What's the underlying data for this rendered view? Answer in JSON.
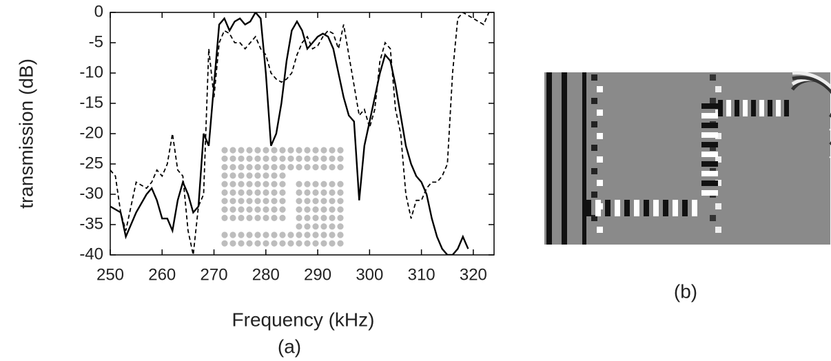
{
  "chart_data": {
    "type": "line",
    "xlabel": "Frequency (kHz)",
    "ylabel": "transmission (dB)",
    "xlim": [
      250,
      324
    ],
    "ylim": [
      -40,
      0
    ],
    "xticks": [
      250,
      260,
      270,
      280,
      290,
      300,
      310,
      320
    ],
    "yticks": [
      0,
      -5,
      -10,
      -15,
      -20,
      -25,
      -30,
      -35,
      -40
    ],
    "series": [
      {
        "color": "#000000",
        "line_style": "solid",
        "x": [
          250,
          252,
          253,
          255,
          257,
          258,
          259,
          260,
          261,
          262,
          263,
          264,
          265,
          266,
          267,
          268,
          269,
          270,
          271,
          272,
          273,
          274,
          275,
          276,
          277,
          278,
          279,
          280,
          281,
          282,
          283,
          284,
          285,
          286,
          287,
          288,
          289,
          290,
          291,
          292,
          293,
          294,
          295,
          296,
          297,
          298,
          299,
          300,
          301,
          302,
          303,
          304,
          305,
          306,
          307,
          308,
          309,
          310,
          311,
          312,
          313,
          314,
          315,
          316,
          317,
          318,
          319
        ],
        "values": [
          -32,
          -33,
          -37,
          -33,
          -30,
          -29,
          -31,
          -34,
          -34,
          -36,
          -31,
          -28,
          -30,
          -33,
          -32,
          -20,
          -22,
          -12,
          -2,
          -1,
          -3,
          -1.5,
          -1,
          -2,
          -1.5,
          0,
          -1,
          -10,
          -22,
          -20,
          -15,
          -8,
          -3,
          -1.5,
          -3,
          -6,
          -5,
          -4,
          -3.5,
          -4,
          -6,
          -10,
          -14,
          -17,
          -18,
          -31,
          -22,
          -18,
          -14,
          -10,
          -7,
          -8,
          -12,
          -17,
          -22,
          -25,
          -27,
          -28,
          -30,
          -34,
          -37,
          -39,
          -40,
          -40,
          -39,
          -37,
          -39
        ]
      },
      {
        "color": "#000000",
        "line_style": "dashed",
        "x": [
          250,
          251,
          252,
          253,
          255,
          257,
          258,
          259,
          260,
          261,
          262,
          263,
          264,
          265,
          266,
          267,
          268,
          269,
          270,
          271,
          272,
          273,
          274,
          275,
          276,
          277,
          278,
          279,
          280,
          281,
          282,
          283,
          284,
          285,
          286,
          287,
          288,
          289,
          290,
          291,
          292,
          293,
          294,
          295,
          296,
          297,
          298,
          299,
          300,
          301,
          302,
          303,
          304,
          305,
          306,
          307,
          308,
          309,
          310,
          311,
          312,
          313,
          314,
          315,
          316,
          317,
          318,
          320,
          322,
          323
        ],
        "values": [
          -26,
          -27,
          -33,
          -36,
          -28,
          -29,
          -28,
          -26,
          -27,
          -25,
          -20,
          -26,
          -27,
          -36,
          -40,
          -32,
          -30,
          -6,
          -14,
          -5,
          -3,
          -3.5,
          -5,
          -5,
          -6,
          -5,
          -4,
          -6,
          -7,
          -10,
          -11,
          -11.5,
          -11,
          -10,
          -7,
          -5,
          -4,
          -6,
          -5.5,
          -4,
          -3,
          -3.5,
          -6,
          -2,
          -7,
          -12,
          -17,
          -16,
          -19,
          -16,
          -8,
          -5,
          -6,
          -16,
          -20,
          -30,
          -34,
          -31,
          -31,
          -29,
          -28,
          -28,
          -27,
          -25,
          -10,
          -1,
          0,
          -1,
          -2,
          0
        ]
      }
    ]
  },
  "panel_labels": [
    "(a)",
    "(b)"
  ]
}
